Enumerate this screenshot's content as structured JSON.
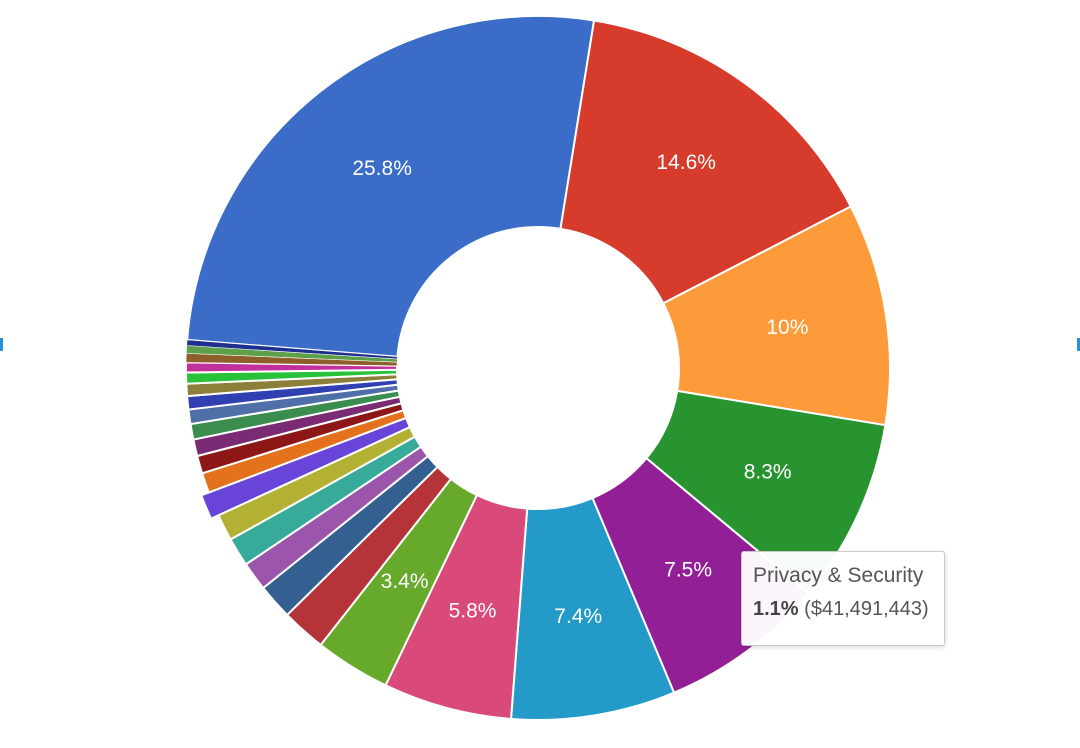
{
  "chart_data": {
    "type": "pie",
    "donut": true,
    "legend": "none",
    "total_label_threshold_percent": 3,
    "slices": [
      {
        "label": "",
        "value": 25.8,
        "color": "#3b6cc7",
        "display": "25.8%"
      },
      {
        "label": "",
        "value": 14.6,
        "color": "#d63b2b",
        "display": "14.6%"
      },
      {
        "label": "",
        "value": 10.0,
        "color": "#fd9a3a",
        "display": "10%"
      },
      {
        "label": "",
        "value": 8.3,
        "color": "#27942f",
        "display": "8.3%"
      },
      {
        "label": "",
        "value": 7.5,
        "color": "#931f96",
        "display": "7.5%"
      },
      {
        "label": "",
        "value": 7.4,
        "color": "#249ac8",
        "display": "7.4%"
      },
      {
        "label": "",
        "value": 5.8,
        "color": "#d9497a",
        "display": "5.8%"
      },
      {
        "label": "",
        "value": 3.4,
        "color": "#67a92a",
        "display": "3.4%"
      },
      {
        "label": "",
        "value": 2.0,
        "color": "#b4343a",
        "display": ""
      },
      {
        "label": "",
        "value": 1.6,
        "color": "#335f91",
        "display": ""
      },
      {
        "label": "",
        "value": 1.3,
        "color": "#9b55ab",
        "display": ""
      },
      {
        "label": "",
        "value": 1.3,
        "color": "#37aa9a",
        "display": ""
      },
      {
        "label": "",
        "value": 1.2,
        "color": "#b3b134",
        "display": ""
      },
      {
        "label": "Privacy & Security",
        "value": 1.1,
        "color": "#6845d8",
        "display": "",
        "highlighted": true,
        "amount": "$41,491,443"
      },
      {
        "label": "",
        "value": 0.9,
        "color": "#e4721c",
        "display": ""
      },
      {
        "label": "",
        "value": 0.8,
        "color": "#8d1717",
        "display": ""
      },
      {
        "label": "",
        "value": 0.75,
        "color": "#7a2b74",
        "display": ""
      },
      {
        "label": "",
        "value": 0.7,
        "color": "#3b8d4f",
        "display": ""
      },
      {
        "label": "",
        "value": 0.65,
        "color": "#4f6fa8",
        "display": ""
      },
      {
        "label": "",
        "value": 0.6,
        "color": "#3040b0",
        "display": ""
      },
      {
        "label": "",
        "value": 0.55,
        "color": "#8c7f3a",
        "display": ""
      },
      {
        "label": "",
        "value": 0.5,
        "color": "#28c23a",
        "display": ""
      },
      {
        "label": "",
        "value": 0.45,
        "color": "#c2309c",
        "display": ""
      },
      {
        "label": "",
        "value": 0.4,
        "color": "#8e5f2a",
        "display": ""
      },
      {
        "label": "",
        "value": 0.35,
        "color": "#5ea04a",
        "display": ""
      },
      {
        "label": "",
        "value": 0.25,
        "color": "#1f2f8f",
        "display": ""
      }
    ]
  },
  "tooltip": {
    "title": "Privacy & Security",
    "percent": "1.1%",
    "amount": "($41,491,443)"
  }
}
